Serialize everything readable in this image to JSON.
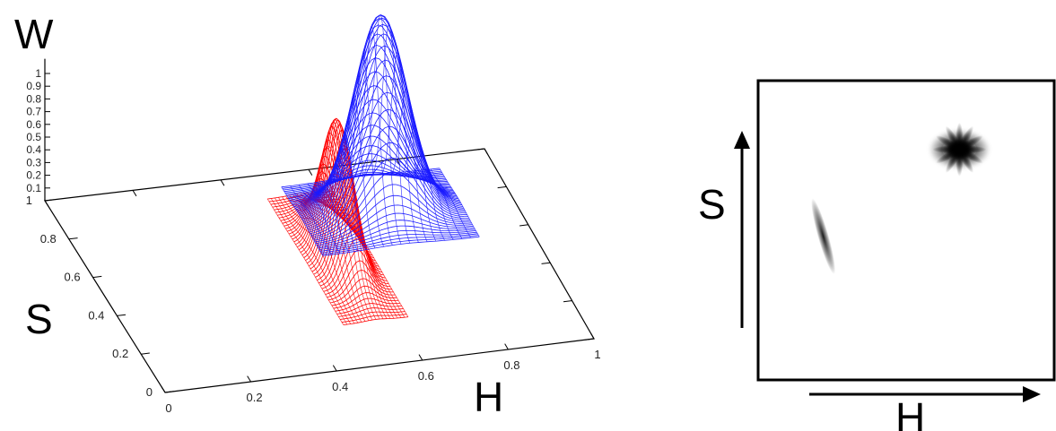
{
  "figure": {
    "w_label": "W",
    "s_label_left": "S",
    "h_label_left": "H",
    "s_label_right": "S",
    "h_label_right": "H"
  },
  "chart_data": [
    {
      "type": "surface",
      "title": "",
      "xlabel": "H",
      "ylabel": "S",
      "zlabel": "W",
      "xlim": [
        0,
        1
      ],
      "ylim": [
        0,
        1
      ],
      "zlim": [
        0,
        1
      ],
      "x_ticks": [
        "0",
        "0.2",
        "0.4",
        "0.6",
        "0.8",
        "1"
      ],
      "y_ticks": [
        "0",
        "0.2",
        "0.4",
        "0.6",
        "0.8",
        "1"
      ],
      "z_ticks": [
        "0.1",
        "0.2",
        "0.3",
        "0.4",
        "0.5",
        "0.6",
        "0.7",
        "0.8",
        "0.9",
        "1"
      ],
      "grid": false,
      "series": [
        {
          "color": "#ff0000",
          "peak_h": 0.55,
          "peak_s": 0.55,
          "peak_w": 0.7,
          "spread_h": 0.025,
          "spread_s": 0.11
        },
        {
          "color": "#1a1aff",
          "peak_h": 0.7,
          "peak_s": 0.75,
          "peak_w": 1.0,
          "spread_h": 0.06,
          "spread_s": 0.06
        }
      ]
    },
    {
      "type": "heatmap",
      "xlabel": "H",
      "ylabel": "S",
      "colors": [
        "#ffffff",
        "#000000"
      ],
      "blobs": [
        {
          "h": 0.22,
          "s": 0.48,
          "w": 0.7
        },
        {
          "h": 0.68,
          "s": 0.77,
          "w": 1.0
        }
      ]
    }
  ]
}
